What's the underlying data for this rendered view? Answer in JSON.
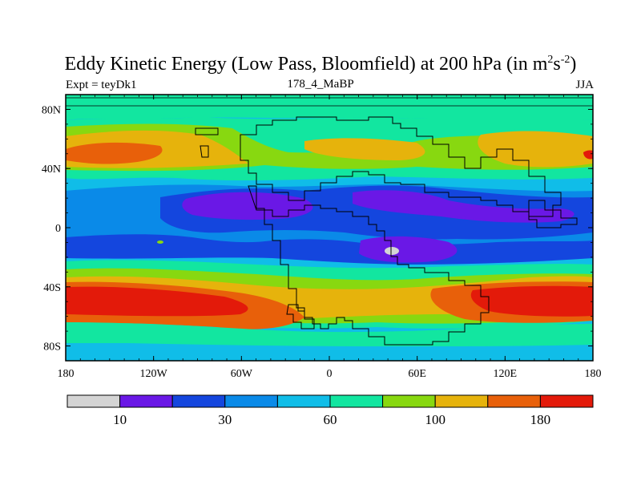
{
  "title": {
    "main": "Eddy Kinetic Energy (Low Pass, Bloomfield) at 200 hPa (in m",
    "sup1": "2",
    "mid": "s",
    "sup2": "-2",
    "end": ")"
  },
  "subtitle": {
    "left": "Expt = teyDk1",
    "center": "178_4_MaBP",
    "right": "JJA"
  },
  "map": {
    "lat_labels": [
      "80N",
      "40N",
      "0",
      "40S",
      "80S"
    ],
    "lat_values": [
      80,
      40,
      0,
      -40,
      -80
    ],
    "lon_labels": [
      "180",
      "120W",
      "60W",
      "0",
      "60E",
      "120E",
      "180"
    ],
    "lon_values": [
      -180,
      -120,
      -60,
      0,
      60,
      120,
      180
    ]
  },
  "colorbar": {
    "colors": [
      "#d4d4d4",
      "#6a18e6",
      "#1446de",
      "#0a8ae8",
      "#10bde8",
      "#12e6a0",
      "#88d810",
      "#e6b30c",
      "#e8600a",
      "#e31a0a"
    ],
    "labels": [
      "10",
      "30",
      "60",
      "100",
      "180"
    ],
    "label_boundaries": [
      1,
      3,
      5,
      7,
      9
    ]
  }
}
